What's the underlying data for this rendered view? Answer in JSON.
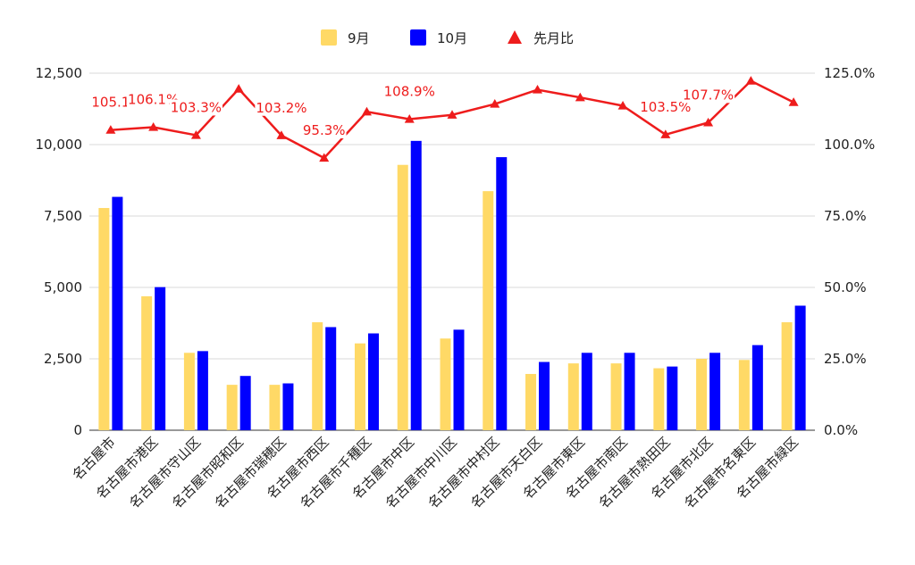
{
  "chart_data": {
    "type": "bar",
    "categories": [
      "名古屋市",
      "名古屋市港区",
      "名古屋市守山区",
      "名古屋市昭和区",
      "名古屋市瑞穂区",
      "名古屋市西区",
      "名古屋市千種区",
      "名古屋市中区",
      "名古屋市中川区",
      "名古屋市中村区",
      "名古屋市天白区",
      "名古屋市東区",
      "名古屋市南区",
      "名古屋市熱田区",
      "名古屋市北区",
      "名古屋市名東区",
      "名古屋市緑区"
    ],
    "series": [
      {
        "name": "9月",
        "type": "bar",
        "axis": "left",
        "color": "#ffd966",
        "values": [
          7780,
          4690,
          2710,
          1590,
          1590,
          3780,
          3040,
          9290,
          3210,
          8370,
          1970,
          2340,
          2340,
          2170,
          2500,
          2460,
          3780
        ]
      },
      {
        "name": "10月",
        "type": "bar",
        "axis": "left",
        "color": "#0000ff",
        "values": [
          8170,
          5010,
          2770,
          1900,
          1640,
          3610,
          3390,
          10130,
          3520,
          9560,
          2390,
          2710,
          2710,
          2230,
          2710,
          2980,
          4360
        ]
      },
      {
        "name": "先月比",
        "type": "line",
        "axis": "right",
        "color": "#ee1c1c",
        "marker": "triangle",
        "values": [
          105.1,
          106.1,
          103.3,
          119.5,
          103.2,
          95.3,
          111.5,
          108.9,
          110.4,
          114.2,
          119.2,
          116.5,
          113.6,
          103.5,
          107.7,
          122.3,
          114.8
        ]
      }
    ],
    "data_labels": [
      {
        "index": 0,
        "text": "105.1"
      },
      {
        "index": 1,
        "text": "106.1%"
      },
      {
        "index": 2,
        "text": "103.3%"
      },
      {
        "index": 4,
        "text": "103.2%"
      },
      {
        "index": 5,
        "text": "95.3%"
      },
      {
        "index": 7,
        "text": "108.9%"
      },
      {
        "index": 13,
        "text": "103.5%"
      },
      {
        "index": 14,
        "text": "107.7%"
      }
    ],
    "y_left": {
      "min": 0,
      "max": 12500,
      "ticks": [
        "0",
        "2,500",
        "5,000",
        "7,500",
        "10,000",
        "12,500"
      ]
    },
    "y_right": {
      "min": 0,
      "max": 125,
      "ticks": [
        "0.0%",
        "25.0%",
        "50.0%",
        "75.0%",
        "100.0%",
        "125.0%"
      ]
    },
    "grid": true,
    "legend_position": "top-center"
  }
}
